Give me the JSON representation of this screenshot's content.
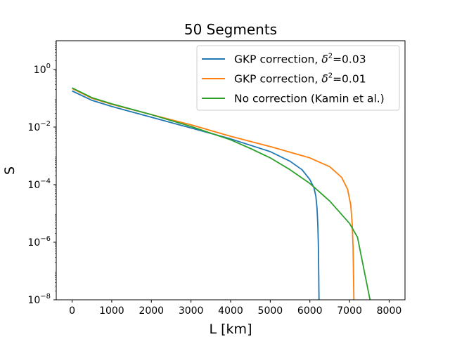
{
  "chart_data": {
    "type": "line",
    "title": "50 Segments",
    "xlabel": "L [km]",
    "ylabel": "S",
    "yscale": "log",
    "xlim": [
      -400,
      8400
    ],
    "ylim": [
      1e-08,
      10
    ],
    "xticks": [
      0,
      1000,
      2000,
      3000,
      4000,
      5000,
      6000,
      7000,
      8000
    ],
    "yticks": [
      {
        "value": 1,
        "base": "10",
        "exp": "0"
      },
      {
        "value": 0.01,
        "base": "10",
        "exp": "−2"
      },
      {
        "value": 0.0001,
        "base": "10",
        "exp": "−4"
      },
      {
        "value": 1e-06,
        "base": "10",
        "exp": "−6"
      },
      {
        "value": 1e-08,
        "base": "10",
        "exp": "−8"
      }
    ],
    "legend_position": "top-right",
    "series": [
      {
        "name": "GKP correction, δ²=0.03",
        "legend": {
          "prefix": "GKP correction, ",
          "symbol": "δ",
          "sup": "2",
          "suffix": "=0.03"
        },
        "color": "#1f77b4",
        "points": [
          [
            0,
            0.18
          ],
          [
            500,
            0.085
          ],
          [
            1000,
            0.052
          ],
          [
            2000,
            0.022
          ],
          [
            3000,
            0.0093
          ],
          [
            4000,
            0.0039
          ],
          [
            5000,
            0.0014
          ],
          [
            5500,
            0.00065
          ],
          [
            5800,
            0.00033
          ],
          [
            6000,
            0.00015
          ],
          [
            6100,
            8e-05
          ],
          [
            6150,
            4e-05
          ],
          [
            6180,
            1.5e-05
          ],
          [
            6200,
            4e-06
          ],
          [
            6215,
            8e-07
          ],
          [
            6225,
            5e-08
          ],
          [
            6230,
            1e-08
          ]
        ]
      },
      {
        "name": "GKP correction, δ²=0.01",
        "legend": {
          "prefix": "GKP correction, ",
          "symbol": "δ",
          "sup": "2",
          "suffix": "=0.01"
        },
        "color": "#ff7f0e",
        "points": [
          [
            0,
            0.22
          ],
          [
            500,
            0.1
          ],
          [
            1000,
            0.062
          ],
          [
            2000,
            0.027
          ],
          [
            3000,
            0.012
          ],
          [
            4000,
            0.0048
          ],
          [
            5000,
            0.0021
          ],
          [
            6000,
            0.00085
          ],
          [
            6500,
            0.00042
          ],
          [
            6800,
            0.00018
          ],
          [
            6950,
            7e-05
          ],
          [
            7030,
            2e-05
          ],
          [
            7070,
            4e-06
          ],
          [
            7090,
            6e-07
          ],
          [
            7100,
            8e-08
          ],
          [
            7110,
            1e-08
          ]
        ]
      },
      {
        "name": "No correction (Kamin et al.)",
        "legend": {
          "prefix": "No correction (Kamin et al.)",
          "symbol": "",
          "sup": "",
          "suffix": ""
        },
        "color": "#2ca02c",
        "points": [
          [
            0,
            0.23
          ],
          [
            500,
            0.105
          ],
          [
            1000,
            0.064
          ],
          [
            2000,
            0.027
          ],
          [
            3000,
            0.0105
          ],
          [
            4000,
            0.0036
          ],
          [
            4500,
            0.0018
          ],
          [
            5000,
            0.00085
          ],
          [
            5500,
            0.00033
          ],
          [
            6000,
            0.00011
          ],
          [
            6500,
            2.7e-05
          ],
          [
            7000,
            4.5e-06
          ],
          [
            7200,
            1.5e-06
          ],
          [
            7500,
            1.3e-08
          ],
          [
            7520,
            1e-08
          ]
        ]
      }
    ]
  }
}
